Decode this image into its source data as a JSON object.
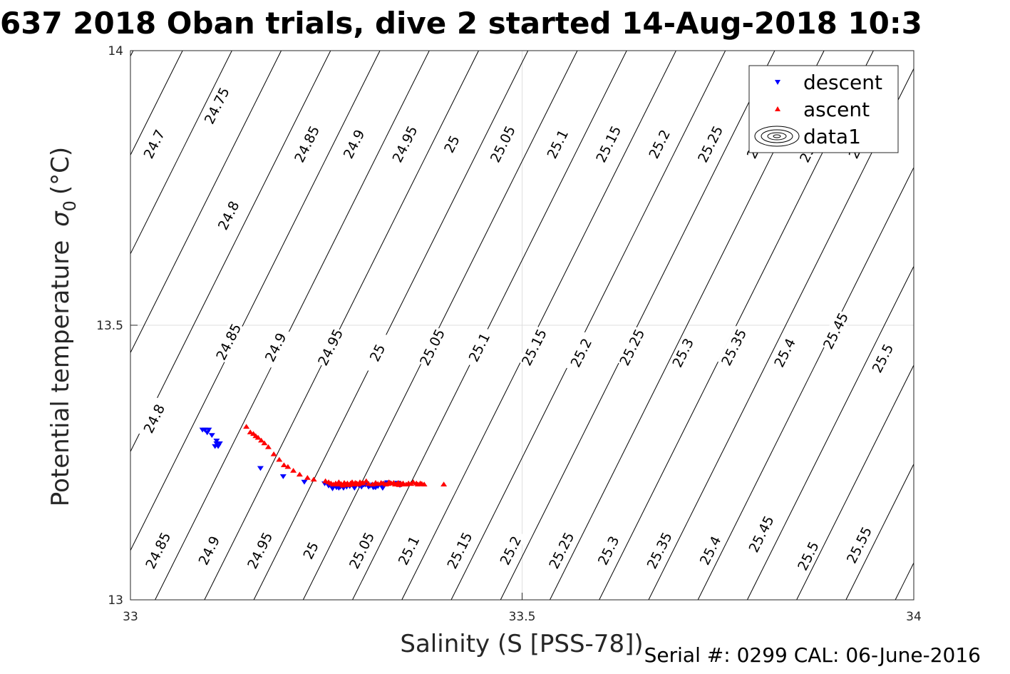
{
  "title": "637 2018 Oban trials, dive 2 started 14-Aug-2018 10:3",
  "footer": {
    "serial": "Serial #: 0299 CAL: 06-June-2016"
  },
  "chart_data": {
    "type": "scatter",
    "title": "637 2018 Oban trials, dive 2 started 14-Aug-2018 10:3",
    "xlabel": "Salinity (S [PSS-78])",
    "ylabel": "Potential temperature",
    "ylabel_symbol": "σ",
    "ylabel_sub": "0",
    "ylabel_unit": "(°C)",
    "xlim": [
      33,
      34
    ],
    "ylim": [
      13,
      14
    ],
    "xticks": [
      "33",
      "33.5",
      "34"
    ],
    "yticks": [
      "13",
      "13.5",
      "14"
    ],
    "grid": true,
    "legend_position": "top-right",
    "legend": [
      "descent",
      "ascent",
      "data1"
    ],
    "colors": {
      "descent": "#0000ff",
      "ascent": "#ff0000",
      "contour": "#000000",
      "grid": "#dfdfdf"
    },
    "contours": {
      "levels": [
        "24.7",
        "24.75",
        "24.8",
        "24.85",
        "24.9",
        "24.95",
        "25",
        "25.05",
        "25.1",
        "25.15",
        "25.2",
        "25.25",
        "25.3",
        "25.35",
        "25.4",
        "25.45",
        "25.5",
        "25.55",
        "25.6",
        "25.65"
      ],
      "labels": [
        {
          "text": "24.7",
          "s": 33.03,
          "t": 13.83
        },
        {
          "text": "24.75",
          "s": 33.11,
          "t": 13.9
        },
        {
          "text": "24.8",
          "s": 33.125,
          "t": 13.7
        },
        {
          "text": "24.85",
          "s": 33.225,
          "t": 13.83
        },
        {
          "text": "24.9",
          "s": 33.285,
          "t": 13.83
        },
        {
          "text": "24.95",
          "s": 33.35,
          "t": 13.83
        },
        {
          "text": "25",
          "s": 33.41,
          "t": 13.83
        },
        {
          "text": "25.05",
          "s": 33.475,
          "t": 13.83
        },
        {
          "text": "25.1",
          "s": 33.545,
          "t": 13.83
        },
        {
          "text": "25.15",
          "s": 33.61,
          "t": 13.83
        },
        {
          "text": "25.2",
          "s": 33.675,
          "t": 13.83
        },
        {
          "text": "25.25",
          "s": 33.74,
          "t": 13.83
        },
        {
          "text": "25.3",
          "s": 33.8,
          "t": 13.83
        },
        {
          "text": "25.35",
          "s": 33.87,
          "t": 13.83
        },
        {
          "text": "25.4",
          "s": 33.93,
          "t": 13.83
        },
        {
          "text": "24.8",
          "s": 33.03,
          "t": 13.33
        },
        {
          "text": "24.85",
          "s": 33.125,
          "t": 13.47
        },
        {
          "text": "24.9",
          "s": 33.185,
          "t": 13.46
        },
        {
          "text": "24.95",
          "s": 33.255,
          "t": 13.46
        },
        {
          "text": "25",
          "s": 33.315,
          "t": 13.45
        },
        {
          "text": "25.05",
          "s": 33.385,
          "t": 13.46
        },
        {
          "text": "25.1",
          "s": 33.445,
          "t": 13.46
        },
        {
          "text": "25.15",
          "s": 33.515,
          "t": 13.46
        },
        {
          "text": "25.2",
          "s": 33.575,
          "t": 13.45
        },
        {
          "text": "25.25",
          "s": 33.64,
          "t": 13.46
        },
        {
          "text": "25.3",
          "s": 33.705,
          "t": 13.45
        },
        {
          "text": "25.35",
          "s": 33.77,
          "t": 13.46
        },
        {
          "text": "25.4",
          "s": 33.835,
          "t": 13.45
        },
        {
          "text": "25.45",
          "s": 33.9,
          "t": 13.49
        },
        {
          "text": "25.5",
          "s": 33.96,
          "t": 13.44
        },
        {
          "text": "24.85",
          "s": 33.035,
          "t": 13.09
        },
        {
          "text": "24.9",
          "s": 33.1,
          "t": 13.09
        },
        {
          "text": "24.95",
          "s": 33.165,
          "t": 13.09
        },
        {
          "text": "25",
          "s": 33.23,
          "t": 13.09
        },
        {
          "text": "25.05",
          "s": 33.295,
          "t": 13.09
        },
        {
          "text": "25.1",
          "s": 33.355,
          "t": 13.09
        },
        {
          "text": "25.15",
          "s": 33.42,
          "t": 13.09
        },
        {
          "text": "25.2",
          "s": 33.485,
          "t": 13.09
        },
        {
          "text": "25.25",
          "s": 33.55,
          "t": 13.09
        },
        {
          "text": "25.3",
          "s": 33.61,
          "t": 13.09
        },
        {
          "text": "25.35",
          "s": 33.675,
          "t": 13.09
        },
        {
          "text": "25.4",
          "s": 33.74,
          "t": 13.09
        },
        {
          "text": "25.45",
          "s": 33.805,
          "t": 13.12
        },
        {
          "text": "25.5",
          "s": 33.865,
          "t": 13.08
        },
        {
          "text": "25.55",
          "s": 33.93,
          "t": 13.1
        }
      ]
    },
    "series": [
      {
        "name": "descent",
        "marker": "triangle-down",
        "points": [
          [
            33.092,
            13.31
          ],
          [
            33.095,
            13.31
          ],
          [
            33.098,
            13.305
          ],
          [
            33.1,
            13.31
          ],
          [
            33.104,
            13.3
          ],
          [
            33.108,
            13.28
          ],
          [
            33.11,
            13.29
          ],
          [
            33.11,
            13.285
          ],
          [
            33.112,
            13.28
          ],
          [
            33.114,
            13.285
          ],
          [
            33.166,
            13.24
          ],
          [
            33.195,
            13.225
          ],
          [
            33.222,
            13.215
          ],
          [
            33.248,
            13.212
          ],
          [
            33.253,
            13.208
          ],
          [
            33.258,
            13.207
          ],
          [
            33.263,
            13.205
          ],
          [
            33.268,
            13.206
          ],
          [
            33.272,
            13.204
          ],
          [
            33.276,
            13.206
          ],
          [
            33.28,
            13.207
          ],
          [
            33.286,
            13.204
          ],
          [
            33.292,
            13.208
          ],
          [
            33.298,
            13.21
          ],
          [
            33.304,
            13.206
          ],
          [
            33.31,
            13.205
          ],
          [
            33.316,
            13.207
          ],
          [
            33.322,
            13.204
          ],
          [
            33.306,
            13.208
          ],
          [
            33.3,
            13.21
          ],
          [
            33.309,
            13.207
          ],
          [
            33.313,
            13.205
          ],
          [
            33.31,
            13.21
          ],
          [
            33.312,
            13.206
          ],
          [
            33.295,
            13.206
          ],
          [
            33.258,
            13.203
          ],
          [
            33.266,
            13.204
          ],
          [
            33.322,
            13.205
          ],
          [
            33.328,
            13.214
          ],
          [
            33.324,
            13.212
          ],
          [
            33.301,
            13.212
          ],
          [
            33.341,
            13.213
          ],
          [
            33.344,
            13.209
          ]
        ]
      },
      {
        "name": "ascent",
        "marker": "triangle-up",
        "points": [
          [
            33.148,
            13.315
          ],
          [
            33.153,
            13.305
          ],
          [
            33.157,
            13.302
          ],
          [
            33.16,
            13.298
          ],
          [
            33.163,
            13.295
          ],
          [
            33.167,
            13.29
          ],
          [
            33.171,
            13.285
          ],
          [
            33.176,
            13.278
          ],
          [
            33.183,
            13.265
          ],
          [
            33.19,
            13.255
          ],
          [
            33.196,
            13.245
          ],
          [
            33.201,
            13.242
          ],
          [
            33.208,
            13.235
          ],
          [
            33.216,
            13.228
          ],
          [
            33.226,
            13.222
          ],
          [
            33.234,
            13.219
          ],
          [
            33.249,
            13.216
          ],
          [
            33.253,
            13.214
          ],
          [
            33.256,
            13.212
          ],
          [
            33.259,
            13.21
          ],
          [
            33.262,
            13.212
          ],
          [
            33.264,
            13.21
          ],
          [
            33.266,
            13.214
          ],
          [
            33.269,
            13.211
          ],
          [
            33.271,
            13.208
          ],
          [
            33.273,
            13.213
          ],
          [
            33.275,
            13.21
          ],
          [
            33.277,
            13.212
          ],
          [
            33.279,
            13.209
          ],
          [
            33.281,
            13.212
          ],
          [
            33.283,
            13.214
          ],
          [
            33.285,
            13.21
          ],
          [
            33.287,
            13.213
          ],
          [
            33.289,
            13.212
          ],
          [
            33.291,
            13.21
          ],
          [
            33.293,
            13.214
          ],
          [
            33.295,
            13.212
          ],
          [
            33.297,
            13.213
          ],
          [
            33.301,
            13.216
          ],
          [
            33.304,
            13.211
          ],
          [
            33.309,
            13.21
          ],
          [
            33.313,
            13.213
          ],
          [
            33.316,
            13.211
          ],
          [
            33.32,
            13.213
          ],
          [
            33.323,
            13.212
          ],
          [
            33.326,
            13.21
          ],
          [
            33.329,
            13.211
          ],
          [
            33.33,
            13.214
          ],
          [
            33.333,
            13.212
          ],
          [
            33.336,
            13.213
          ],
          [
            33.338,
            13.21
          ],
          [
            33.34,
            13.211
          ],
          [
            33.342,
            13.213
          ],
          [
            33.345,
            13.212
          ],
          [
            33.348,
            13.212
          ],
          [
            33.352,
            13.21
          ],
          [
            33.355,
            13.212
          ],
          [
            33.358,
            13.211
          ],
          [
            33.361,
            13.214
          ],
          [
            33.365,
            13.212
          ],
          [
            33.367,
            13.21
          ],
          [
            33.37,
            13.212
          ],
          [
            33.372,
            13.211
          ],
          [
            33.375,
            13.21
          ],
          [
            33.4,
            13.21
          ],
          [
            33.349,
            13.21
          ],
          [
            33.343,
            13.209
          ],
          [
            33.332,
            13.212
          ]
        ]
      }
    ]
  }
}
